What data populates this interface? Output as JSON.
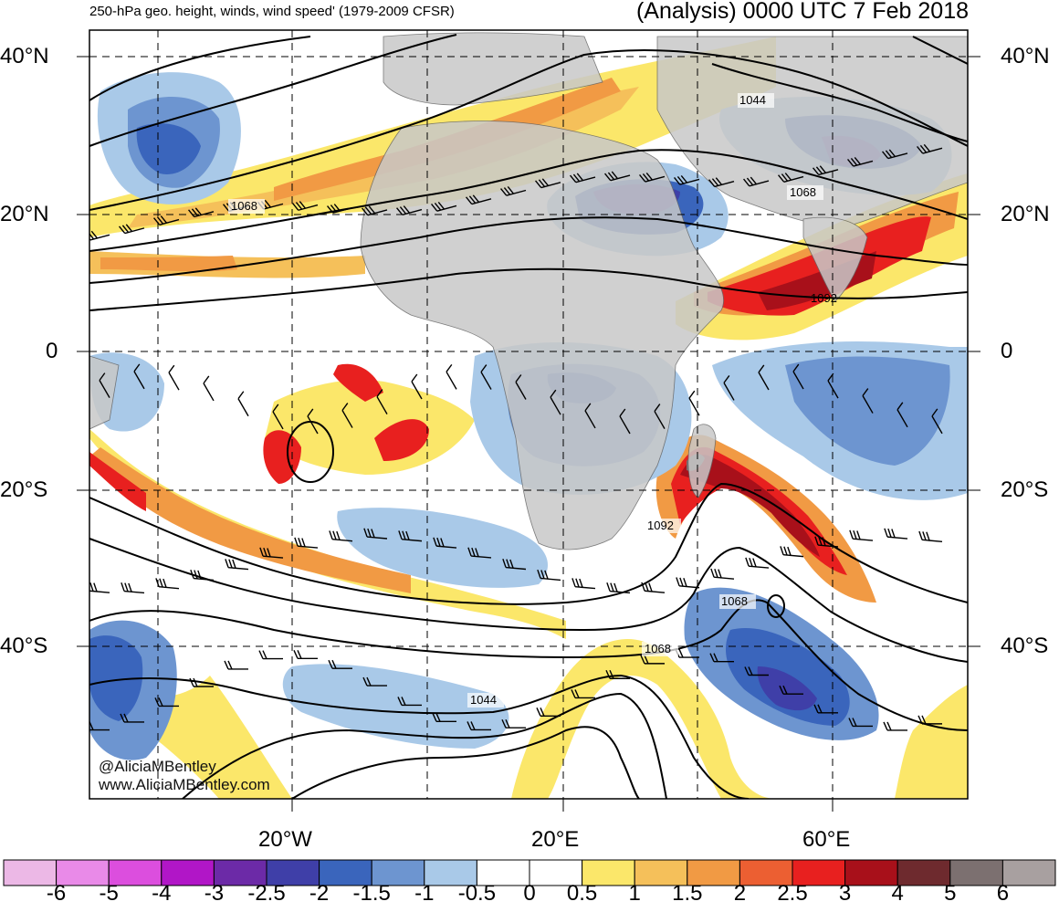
{
  "header": {
    "left_title": "250-hPa geo. height, winds, wind speed' (1979-2009 CFSR)",
    "right_title": "(Analysis) 0000 UTC 7 Feb 2018"
  },
  "map": {
    "lat_labels": {
      "n40": "40°N",
      "n20": "20°N",
      "eq": "0",
      "s20": "20°S",
      "s40": "40°S"
    },
    "lon_labels": {
      "w20": "20°W",
      "e20": "20°E",
      "e60": "60°E"
    },
    "contour_labels": {
      "a": "1044",
      "b": "1068",
      "c": "1068",
      "d": "1092",
      "e": "1092",
      "f": "1068",
      "g": "1068",
      "h": "1044"
    },
    "watermark": {
      "line1": "@AliciaMBentley",
      "line2": "www.AliciaMBentley.com"
    },
    "colors": {
      "land": "#c8c8c8",
      "contour": "#000000"
    }
  },
  "colorbar": {
    "labels": [
      "-6",
      "-5",
      "-4",
      "-3",
      "-2.5",
      "-2",
      "-1.5",
      "-1",
      "-0.5",
      "0",
      "0.5",
      "1",
      "1.5",
      "2",
      "2.5",
      "3",
      "4",
      "5",
      "6"
    ],
    "colors": [
      "#ecb8e6",
      "#e98ae8",
      "#dc4ede",
      "#b116c7",
      "#6c2aa7",
      "#3f3fa8",
      "#3a65bc",
      "#6d95d0",
      "#a9c9e8",
      "#ffffff",
      "#ffffff",
      "#fbe76a",
      "#f5c05a",
      "#f19a44",
      "#ec5f32",
      "#e8201f",
      "#a8101a",
      "#6e2a2e",
      "#7c7070",
      "#a8a0a0"
    ]
  }
}
